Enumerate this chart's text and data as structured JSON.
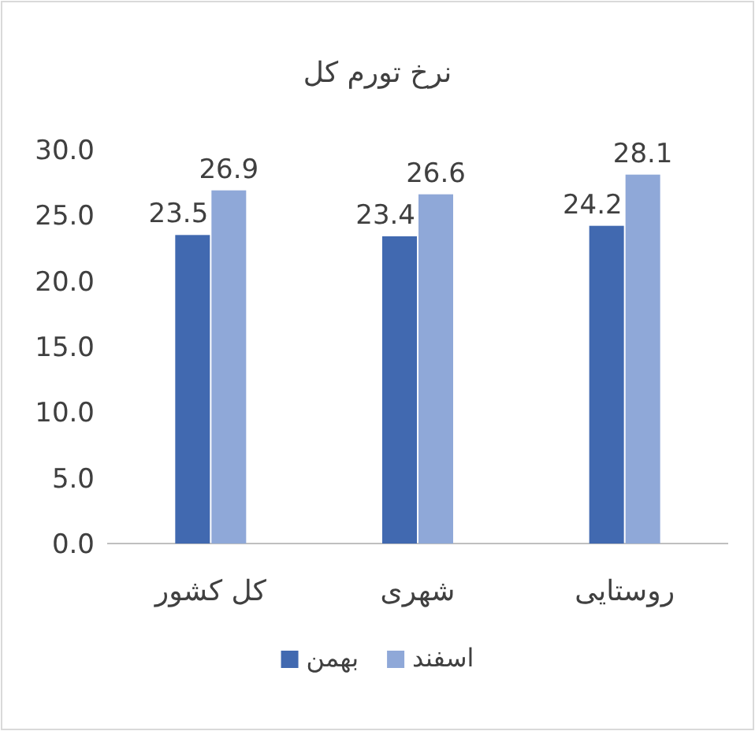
{
  "chart_data": {
    "type": "bar",
    "title": "نرخ تورم کل",
    "categories": [
      "کل کشور",
      "شهری",
      "روستایی"
    ],
    "series": [
      {
        "name": "بهمن",
        "color": "#4169b0",
        "values": [
          23.5,
          23.4,
          24.2
        ]
      },
      {
        "name": "اسفند",
        "color": "#8fa8d8",
        "values": [
          26.9,
          26.6,
          28.1
        ]
      }
    ],
    "ylim": [
      0,
      30
    ],
    "yticks": [
      {
        "value": 0,
        "label": "0.0"
      },
      {
        "value": 5,
        "label": "5.0"
      },
      {
        "value": 10,
        "label": "10.0"
      },
      {
        "value": 15,
        "label": "15.0"
      },
      {
        "value": 20,
        "label": "20.0"
      },
      {
        "value": 25,
        "label": "25.0"
      },
      {
        "value": 30,
        "label": "30.0"
      }
    ],
    "grid": false,
    "legend": "bottom",
    "data_labels": true
  }
}
